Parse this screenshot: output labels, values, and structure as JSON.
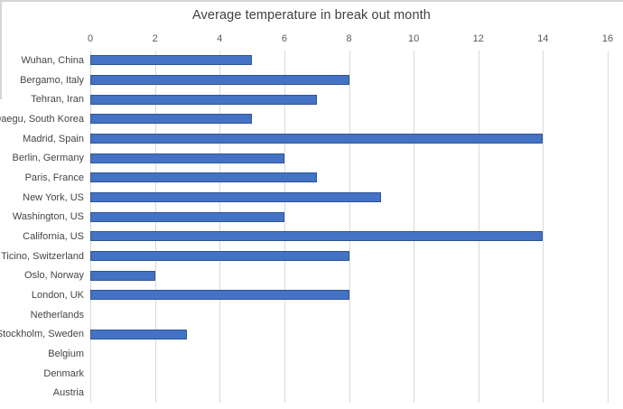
{
  "chart_data": {
    "type": "bar",
    "orientation": "horizontal",
    "title": "Average temperature in break out month",
    "categories": [
      "Wuhan, China",
      "Bergamo, Italy",
      "Tehran, Iran",
      "Daegu, South Korea",
      "Madrid, Spain",
      "Berlin, Germany",
      "Paris, France",
      "New York, US",
      "Washington, US",
      "California, US",
      "Ticino, Switzerland",
      "Oslo, Norway",
      "London, UK",
      "Netherlands",
      "Stockholm, Sweden",
      "Belgium",
      "Denmark",
      "Austria"
    ],
    "values": [
      5,
      8,
      7,
      5,
      14,
      6,
      7,
      9,
      6,
      14,
      8,
      2,
      8,
      0,
      3,
      0,
      0,
      0
    ],
    "xlabel": "",
    "ylabel": "",
    "xlim": [
      0,
      16
    ],
    "xticks": [
      0,
      2,
      4,
      6,
      8,
      10,
      12,
      14,
      16
    ],
    "tick_position": "top",
    "grid": true,
    "legend": false,
    "colors": {
      "bar_fill": "#4472C4",
      "bar_border": "#2E5597",
      "gridline": "#D9D9D9",
      "tick_text": "#595959",
      "category_text": "#444444",
      "title_text": "#404040",
      "background": "#FFFFFF",
      "edge_line": "#D5D5D5"
    }
  }
}
